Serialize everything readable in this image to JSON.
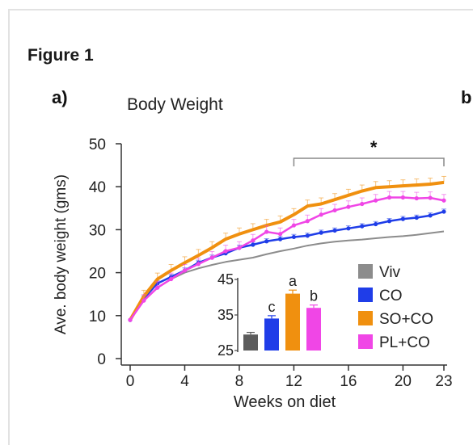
{
  "figure_label": "Figure 1",
  "panel_a": "a)",
  "panel_b": "b",
  "chart_data": [
    {
      "type": "line",
      "title": "Body Weight",
      "xlabel": "Weeks on diet",
      "ylabel": "Ave. body weight (gms)",
      "xlim": [
        0,
        23
      ],
      "ylim": [
        0,
        50
      ],
      "xticks": [
        0,
        4,
        8,
        12,
        16,
        20,
        23
      ],
      "yticks": [
        0,
        10,
        20,
        30,
        40,
        50
      ],
      "legend_position": "bottom-right",
      "annotation": {
        "text": "*",
        "x_from": 12,
        "x_to": 23
      },
      "x": [
        0,
        1,
        2,
        3,
        4,
        5,
        6,
        7,
        8,
        9,
        10,
        11,
        12,
        13,
        14,
        15,
        16,
        17,
        18,
        19,
        20,
        21,
        22,
        23
      ],
      "series": [
        {
          "name": "Viv",
          "color": "#8c8c8c",
          "values": [
            9,
            13.5,
            16.5,
            18.5,
            20,
            21,
            21.8,
            22.5,
            23,
            23.5,
            24.3,
            25,
            25.6,
            26.3,
            26.8,
            27.2,
            27.5,
            27.7,
            28,
            28.3,
            28.5,
            28.8,
            29.2,
            29.6
          ]
        },
        {
          "name": "CO",
          "color": "#1f3de8",
          "values": [
            9,
            14,
            17.5,
            19,
            20.5,
            22.3,
            23.5,
            24.5,
            25.8,
            26.5,
            27.3,
            27.8,
            28.3,
            28.6,
            29.3,
            29.8,
            30.3,
            30.8,
            31.3,
            32,
            32.5,
            32.8,
            33.3,
            34.2
          ]
        },
        {
          "name": "SO+CO",
          "color": "#f0900f",
          "values": [
            9,
            14.5,
            18.5,
            20.5,
            22.3,
            24,
            25.8,
            27.8,
            29,
            30,
            31,
            31.8,
            33.5,
            35.5,
            36,
            37,
            38,
            39,
            39.8,
            40,
            40.2,
            40.4,
            40.6,
            41
          ]
        },
        {
          "name": "PL+CO",
          "color": "#f046e6",
          "values": [
            9,
            13.5,
            16.5,
            18.5,
            20.5,
            22,
            23.5,
            25,
            25.8,
            27.5,
            29.5,
            29,
            31,
            32,
            33.5,
            34.5,
            35.3,
            36,
            36.8,
            37.5,
            37.5,
            37.3,
            37.4,
            36.8
          ]
        }
      ]
    },
    {
      "type": "bar",
      "categories": [
        "Viv",
        "CO",
        "SO+CO",
        "PL+CO"
      ],
      "values": [
        29.5,
        34,
        41,
        37
      ],
      "errors": [
        0.6,
        0.8,
        1.0,
        0.8
      ],
      "colors": [
        "#5c5c5c",
        "#1f3de8",
        "#f0900f",
        "#f046e6"
      ],
      "labels": [
        "",
        "c",
        "a",
        "b"
      ],
      "ylim": [
        25,
        45
      ],
      "yticks": [
        25,
        35,
        45
      ]
    }
  ]
}
